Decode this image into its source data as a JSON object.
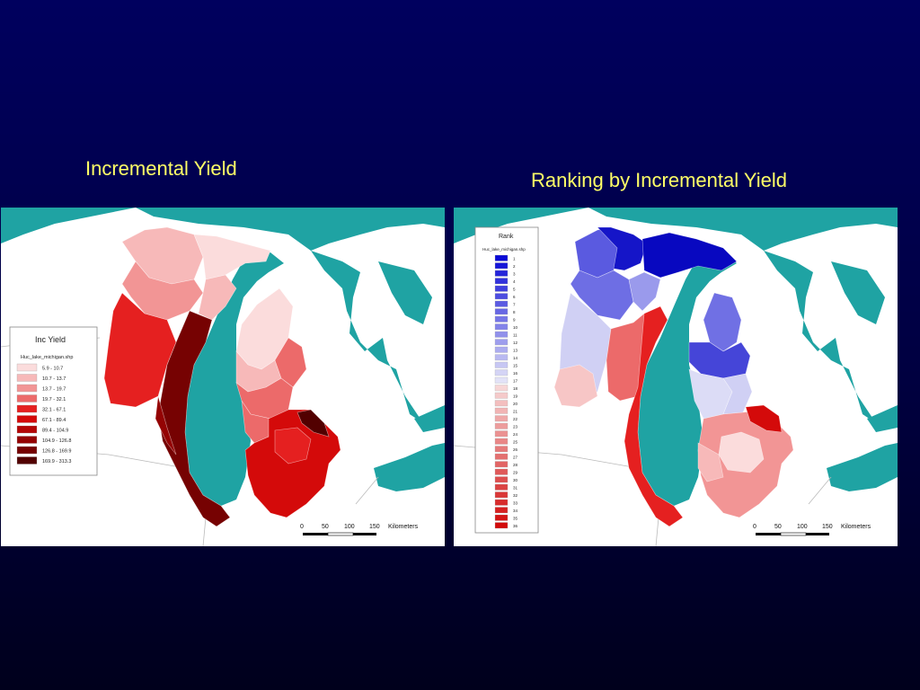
{
  "slide": {
    "left_title": "Incremental Yield",
    "right_title": "Ranking by Incremental Yield"
  },
  "left_map": {
    "legend": {
      "title": "Inc Yield",
      "layer": "Huc_lake_michigan.shp",
      "classes": [
        {
          "label": "5.9 - 10.7",
          "color": "#fbdcdc"
        },
        {
          "label": "10.7 - 13.7",
          "color": "#f7b9b9"
        },
        {
          "label": "13.7 - 19.7",
          "color": "#f29595"
        },
        {
          "label": "19.7 - 32.1",
          "color": "#ec6a6a"
        },
        {
          "label": "32.1 - 67.1",
          "color": "#e52020"
        },
        {
          "label": "67.1 - 89.4",
          "color": "#d40a0a"
        },
        {
          "label": "89.4 - 104.9",
          "color": "#b40606"
        },
        {
          "label": "104.9 - 126.8",
          "color": "#940303"
        },
        {
          "label": "126.8 - 169.9",
          "color": "#760202"
        },
        {
          "label": "169.9 - 313.3",
          "color": "#520000"
        }
      ]
    },
    "scalebar": {
      "ticks": [
        "0",
        "50",
        "100",
        "150"
      ],
      "unit": "Kilometers"
    }
  },
  "right_map": {
    "legend": {
      "title": "Rank",
      "layer": "Huc_lake_michigan.shp",
      "ranks": [
        "1",
        "2",
        "3",
        "4",
        "5",
        "6",
        "7",
        "8",
        "9",
        "10",
        "11",
        "12",
        "13",
        "14",
        "15",
        "16",
        "17",
        "18",
        "19",
        "20",
        "21",
        "22",
        "23",
        "24",
        "25",
        "26",
        "27",
        "28",
        "29",
        "30",
        "31",
        "32",
        "33",
        "34",
        "35",
        "36"
      ]
    },
    "scalebar": {
      "ticks": [
        "0",
        "50",
        "100",
        "150"
      ],
      "unit": "Kilometers"
    }
  },
  "colors": {
    "water": "#1fa3a3",
    "land": "#ffffff",
    "low_red": "#fbdcdc",
    "high_red": "#520000",
    "high_rank": "#0a0ad6",
    "low_rank": "#e8e8f8"
  }
}
